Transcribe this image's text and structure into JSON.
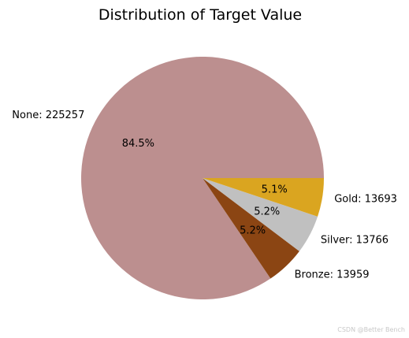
{
  "chart_data": {
    "type": "pie",
    "title": "Distribution of Target Value",
    "slices": [
      {
        "name": "None",
        "value": 225257,
        "label": "None: 225257",
        "pct_label": "84.5%",
        "color": "#bc8f8f"
      },
      {
        "name": "Bronze",
        "value": 13959,
        "label": "Bronze: 13959",
        "pct_label": "5.2%",
        "color": "#8b4513"
      },
      {
        "name": "Silver",
        "value": 13766,
        "label": "Silver: 13766",
        "pct_label": "5.2%",
        "color": "#c0c0c0"
      },
      {
        "name": "Gold",
        "value": 13693,
        "label": "Gold: 13693",
        "pct_label": "5.1%",
        "color": "#daa520"
      }
    ],
    "start_angle": 0,
    "direction": "counterclockwise",
    "legend": "none"
  },
  "watermark": "CSDN @Better Bench"
}
